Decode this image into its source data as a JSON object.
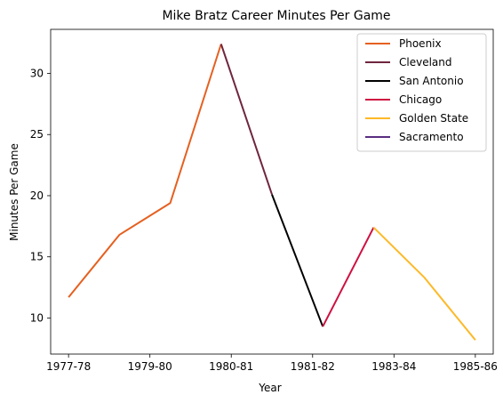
{
  "chart_data": {
    "type": "line",
    "title": "Mike Bratz Career Minutes Per Game",
    "xlabel": "Year",
    "ylabel": "Minutes Per Game",
    "x_tick_labels": [
      "1977-78",
      "1979-80",
      "1980-81",
      "1981-82",
      "1983-84",
      "1985-86"
    ],
    "x_tick_positions": [
      0,
      1,
      2,
      3,
      4,
      5
    ],
    "xlim": [
      -0.22,
      5.22
    ],
    "y_ticks": [
      10,
      15,
      20,
      25,
      30
    ],
    "ylim": [
      7.05,
      33.6
    ],
    "legend_position": "top-right",
    "grid": false,
    "series": [
      {
        "name": "Phoenix",
        "color": "#E56020",
        "x": [
          0,
          1,
          2,
          3
        ],
        "y": [
          11.7,
          16.8,
          19.4,
          32.4
        ]
      },
      {
        "name": "Cleveland",
        "color": "#6F263D",
        "x": [
          3,
          4
        ],
        "y": [
          32.4,
          20.1
        ]
      },
      {
        "name": "San Antonio",
        "color": "#000000",
        "x": [
          4,
          5
        ],
        "y": [
          20.1,
          9.3
        ]
      },
      {
        "name": "Chicago",
        "color": "#CE1141",
        "x": [
          5,
          6
        ],
        "y": [
          9.3,
          17.4
        ]
      },
      {
        "name": "Golden State",
        "color": "#FDB927",
        "x": [
          6,
          7,
          8
        ],
        "y": [
          17.4,
          13.3,
          8.2
        ]
      },
      {
        "name": "Sacramento",
        "color": "#5A2D81",
        "x": [],
        "y": []
      }
    ]
  }
}
